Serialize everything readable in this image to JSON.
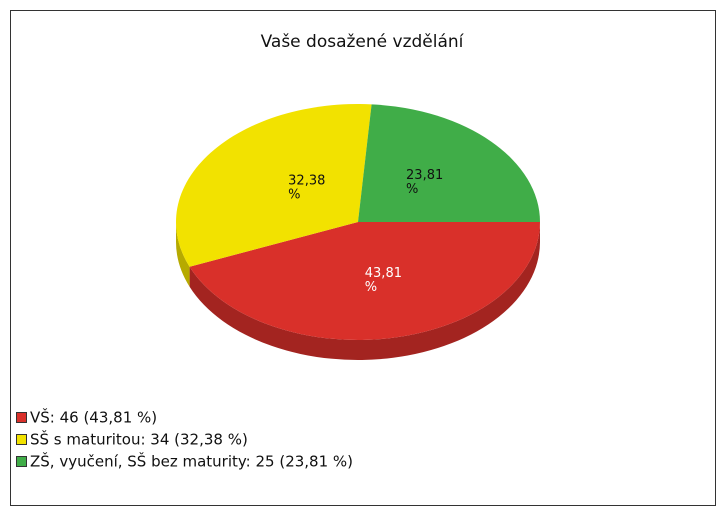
{
  "chart_data": {
    "type": "pie",
    "title": "Vaše dosažené vzdělání",
    "categories": [
      "VŠ: 46 (43,81 %)",
      "SŠ s maturitou: 34 (32,38 %)",
      "ZŠ, vyučení, SŠ bez maturity: 25 (23,81 %)"
    ],
    "values": [
      43.81,
      32.38,
      23.81
    ],
    "value_labels": [
      "43,81 %",
      "32,38 %",
      "23,81 %"
    ],
    "colors": [
      "#d9302a",
      "#f2e200",
      "#40ad48"
    ],
    "legend": "bottom-left"
  }
}
